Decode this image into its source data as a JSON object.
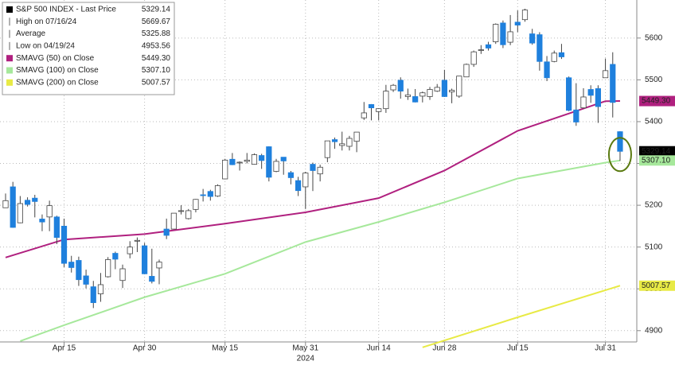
{
  "chart_data": {
    "type": "candlestick",
    "up_color": "#ffffff",
    "down_color": "#1f80dd",
    "ylim": [
      4873,
      5691
    ],
    "yticks": [
      4900,
      5000,
      5100,
      5200,
      5300,
      5400,
      5500,
      5600
    ],
    "grid": true,
    "x_label": "2024",
    "xticks": [
      {
        "value": "2024-04-15",
        "label": "Apr 15"
      },
      {
        "value": "2024-04-30",
        "label": "Apr 30"
      },
      {
        "value": "2024-05-15",
        "label": "May 15"
      },
      {
        "value": "2024-05-31",
        "label": "May 31"
      },
      {
        "value": "2024-06-14",
        "label": "Jun 14"
      },
      {
        "value": "2024-06-28",
        "label": "Jun 28"
      },
      {
        "value": "2024-07-15",
        "label": "Jul 15"
      },
      {
        "value": "2024-07-31",
        "label": "Jul 31"
      }
    ],
    "categories": [
      "2024-04-03",
      "2024-04-04",
      "2024-04-05",
      "2024-04-08",
      "2024-04-09",
      "2024-04-10",
      "2024-04-11",
      "2024-04-12",
      "2024-04-15",
      "2024-04-16",
      "2024-04-17",
      "2024-04-18",
      "2024-04-19",
      "2024-04-22",
      "2024-04-23",
      "2024-04-24",
      "2024-04-25",
      "2024-04-26",
      "2024-04-29",
      "2024-04-30",
      "2024-05-01",
      "2024-05-02",
      "2024-05-03",
      "2024-05-06",
      "2024-05-07",
      "2024-05-08",
      "2024-05-09",
      "2024-05-10",
      "2024-05-13",
      "2024-05-14",
      "2024-05-15",
      "2024-05-16",
      "2024-05-17",
      "2024-05-20",
      "2024-05-21",
      "2024-05-22",
      "2024-05-23",
      "2024-05-24",
      "2024-05-28",
      "2024-05-29",
      "2024-05-30",
      "2024-05-31",
      "2024-06-03",
      "2024-06-04",
      "2024-06-05",
      "2024-06-06",
      "2024-06-07",
      "2024-06-10",
      "2024-06-11",
      "2024-06-12",
      "2024-06-13",
      "2024-06-14",
      "2024-06-17",
      "2024-06-18",
      "2024-06-20",
      "2024-06-21",
      "2024-06-24",
      "2024-06-25",
      "2024-06-26",
      "2024-06-27",
      "2024-06-28",
      "2024-07-01",
      "2024-07-02",
      "2024-07-03",
      "2024-07-05",
      "2024-07-08",
      "2024-07-09",
      "2024-07-10",
      "2024-07-11",
      "2024-07-12",
      "2024-07-15",
      "2024-07-16",
      "2024-07-17",
      "2024-07-18",
      "2024-07-19",
      "2024-07-22",
      "2024-07-23",
      "2024-07-24",
      "2024-07-25",
      "2024-07-26",
      "2024-07-29",
      "2024-07-30",
      "2024-07-31",
      "2024-08-01",
      "2024-08-02"
    ],
    "open": [
      5194,
      5244,
      5158,
      5212,
      5217,
      5167,
      5172,
      5172,
      5150,
      5064,
      5068,
      5031,
      5005,
      4988,
      5029,
      5085,
      5020,
      5084,
      5114,
      5103,
      5030,
      5050,
      5143,
      5143,
      5187,
      5168,
      5190,
      5225,
      5233,
      5222,
      5263,
      5310,
      5303,
      5305,
      5298,
      5319,
      5340,
      5281,
      5315,
      5278,
      5259,
      5244,
      5298,
      5275,
      5314,
      5357,
      5343,
      5341,
      5353,
      5409,
      5441,
      5424,
      5431,
      5476,
      5499,
      5460,
      5460,
      5461,
      5460,
      5473,
      5499,
      5471,
      5461,
      5507,
      5537,
      5572,
      5584,
      5591,
      5636,
      5590,
      5638,
      5644,
      5610,
      5608,
      5543,
      5544,
      5565,
      5505,
      5428,
      5433,
      5477,
      5479,
      5505,
      5537,
      5376
    ],
    "high": [
      5228,
      5256,
      5222,
      5219,
      5225,
      5178,
      5211,
      5175,
      5168,
      5079,
      5077,
      5046,
      5019,
      5038,
      5076,
      5089,
      5058,
      5114,
      5123,
      5110,
      5096,
      5070,
      5168,
      5181,
      5200,
      5191,
      5215,
      5239,
      5237,
      5250,
      5311,
      5325,
      5305,
      5325,
      5324,
      5323,
      5341,
      5311,
      5315,
      5282,
      5268,
      5280,
      5302,
      5297,
      5354,
      5362,
      5376,
      5366,
      5375,
      5447,
      5442,
      5432,
      5488,
      5490,
      5506,
      5479,
      5478,
      5472,
      5483,
      5490,
      5524,
      5479,
      5509,
      5539,
      5570,
      5583,
      5591,
      5635,
      5642,
      5655,
      5666,
      5670,
      5622,
      5614,
      5557,
      5570,
      5586,
      5508,
      5492,
      5480,
      5487,
      5487,
      5551,
      5566,
      5377
    ],
    "low": [
      5194,
      5146,
      5157,
      5197,
      5171,
      5138,
      5138,
      5107,
      5052,
      5039,
      5007,
      5001,
      4954,
      4969,
      5027,
      5047,
      5002,
      5073,
      5088,
      5035,
      5013,
      5011,
      5119,
      5143,
      5178,
      5166,
      5183,
      5209,
      5211,
      5220,
      5262,
      5296,
      5283,
      5300,
      5297,
      5287,
      5257,
      5279,
      5273,
      5250,
      5222,
      5191,
      5234,
      5257,
      5303,
      5335,
      5331,
      5331,
      5327,
      5404,
      5403,
      5403,
      5421,
      5471,
      5455,
      5452,
      5446,
      5446,
      5452,
      5471,
      5459,
      5444,
      5457,
      5507,
      5531,
      5562,
      5570,
      5586,
      5576,
      5583,
      5614,
      5639,
      5584,
      5522,
      5497,
      5542,
      5550,
      5425,
      5390,
      5431,
      5445,
      5397,
      5505,
      5410,
      5306
    ],
    "close": [
      5211,
      5147,
      5204,
      5202,
      5209,
      5160,
      5199,
      5123,
      5061,
      5051,
      5022,
      5011,
      4967,
      5010,
      5070,
      5071,
      5048,
      5100,
      5116,
      5036,
      5018,
      5064,
      5128,
      5181,
      5187,
      5187,
      5214,
      5223,
      5221,
      5247,
      5308,
      5297,
      5303,
      5308,
      5321,
      5307,
      5267,
      5305,
      5306,
      5266,
      5235,
      5277,
      5283,
      5291,
      5354,
      5352,
      5347,
      5360,
      5375,
      5421,
      5433,
      5431,
      5473,
      5487,
      5473,
      5464,
      5447,
      5469,
      5477,
      5482,
      5460,
      5475,
      5509,
      5537,
      5567,
      5572,
      5576,
      5633,
      5584,
      5615,
      5631,
      5667,
      5588,
      5544,
      5505,
      5564,
      5555,
      5427,
      5399,
      5459,
      5463,
      5436,
      5522,
      5446,
      5329
    ],
    "series": [
      {
        "color": "#b0207f",
        "x": [
          "2024-04-03",
          "2024-04-15",
          "2024-04-30",
          "2024-05-15",
          "2024-05-31",
          "2024-06-14",
          "2024-06-28",
          "2024-07-15",
          "2024-07-31",
          "2024-08-02"
        ],
        "values": [
          5075,
          5118,
          5131,
          5156,
          5183,
          5217,
          5283,
          5378,
          5449,
          5449.3
        ]
      },
      {
        "color": "#a6e89b",
        "x": [
          "2024-04-05",
          "2024-04-15",
          "2024-04-30",
          "2024-05-15",
          "2024-05-31",
          "2024-06-14",
          "2024-06-28",
          "2024-07-15",
          "2024-07-31",
          "2024-08-02"
        ],
        "values": [
          4875,
          4913,
          4980,
          5036,
          5112,
          5160,
          5207,
          5264,
          5302,
          5307.1
        ]
      },
      {
        "color": "#e8ea45",
        "x": [
          "2024-06-25",
          "2024-07-15",
          "2024-08-02"
        ],
        "values": [
          4860,
          4932,
          5007.57
        ]
      }
    ],
    "legend": [
      {
        "name": "S&P 500 INDEX - Last Price",
        "value": "5329.14",
        "color": "#000000",
        "tag_color": "#000000",
        "tag_text": "#ffffff"
      },
      {
        "name": "High on 07/16/24",
        "value": "5669.67"
      },
      {
        "name": "Average",
        "value": "5325.88"
      },
      {
        "name": "Low on 04/19/24",
        "value": "4953.56"
      },
      {
        "name": "SMAVG (50)  on Close",
        "value": "5449.30",
        "color": "#b0207f",
        "tag_color": "#b0207f",
        "tag_text": "#ffffff"
      },
      {
        "name": "SMAVG (100)  on Close",
        "value": "5307.10",
        "color": "#a6e89b",
        "tag_color": "#a6e89b",
        "tag_text": "#333333"
      },
      {
        "name": "SMAVG (200)  on Close",
        "value": "5007.57",
        "color": "#e8ea45",
        "tag_color": "#e8ea45",
        "tag_text": "#333333"
      }
    ]
  }
}
